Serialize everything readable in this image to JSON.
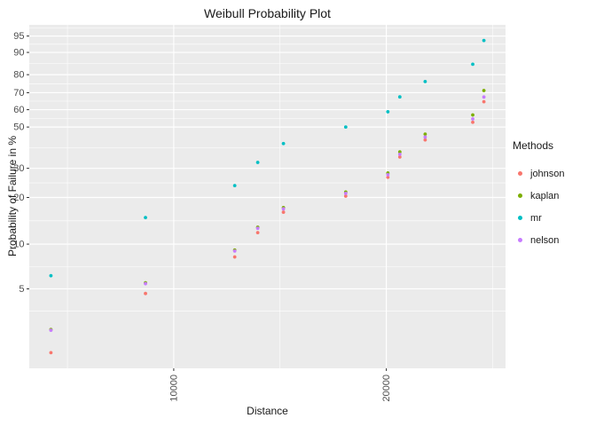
{
  "chart_data": {
    "type": "scatter",
    "title": "Weibull Probability Plot",
    "xlabel": "Distance",
    "ylabel": "Probability of Failure in %",
    "x_scale": "log10",
    "y_scale": "weibull-probability",
    "x_ticks": [
      10000,
      20000
    ],
    "y_ticks": [
      5,
      10,
      20,
      30,
      50,
      60,
      70,
      80,
      90,
      95
    ],
    "x": [
      6700,
      9120,
      12200,
      13150,
      14300,
      17520,
      20100,
      20900,
      22700,
      26510,
      27490
    ],
    "series": [
      {
        "name": "johnson",
        "color": "#F8766D",
        "values": [
          1.82,
          4.65,
          8.21,
          11.91,
          16.15,
          20.38,
          26.56,
          34.81,
          43.06,
          52.68,
          64.7
        ]
      },
      {
        "name": "kaplan",
        "color": "#7CAE00",
        "values": [
          2.63,
          5.5,
          9.13,
          12.92,
          17.27,
          21.62,
          28.16,
          37.14,
          46.12,
          56.89,
          71.26
        ]
      },
      {
        "name": "mr",
        "color": "#00BFC4",
        "values": [
          6.14,
          14.91,
          23.68,
          32.46,
          41.23,
          50.0,
          58.77,
          67.54,
          76.32,
          85.09,
          93.86
        ]
      },
      {
        "name": "nelson",
        "color": "#C77CFF",
        "values": [
          2.6,
          5.42,
          8.99,
          12.7,
          16.96,
          21.22,
          27.52,
          36.03,
          44.55,
          54.6,
          67.47
        ]
      }
    ],
    "legend": {
      "title": "Methods",
      "position": "right"
    },
    "panel_background": "#EBEBEB",
    "grid_color": "#FFFFFF",
    "axis_text_color": "#4D4D4D",
    "tick_color": "#333333"
  }
}
